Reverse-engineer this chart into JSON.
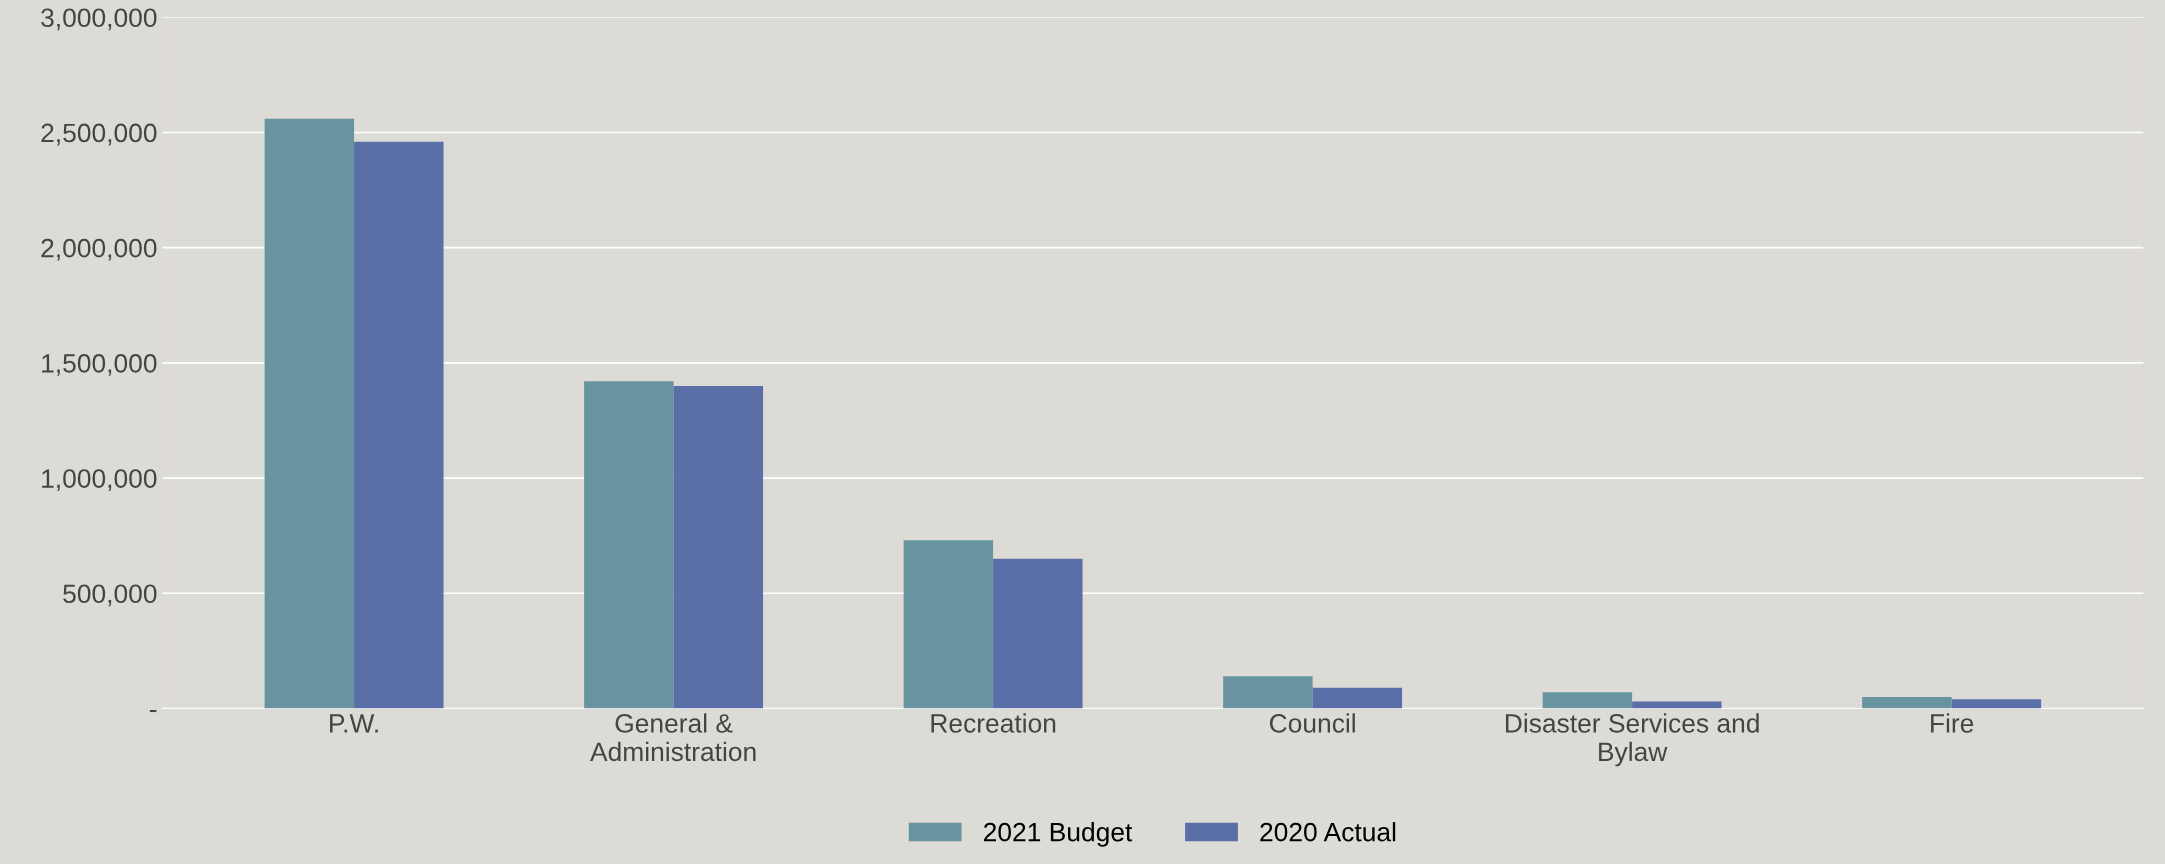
{
  "chart_data": {
    "type": "bar",
    "categories": [
      "P.W.",
      "General &\nAdministration",
      "Recreation",
      "Council",
      "Disaster Services and\nBylaw",
      "Fire"
    ],
    "series": [
      {
        "name": "2021 Budget",
        "color": "#6894a0",
        "values": [
          2560000,
          1420000,
          730000,
          140000,
          70000,
          50000
        ]
      },
      {
        "name": "2020 Actual",
        "color": "#5a6fa8",
        "values": [
          2460000,
          1400000,
          650000,
          90000,
          30000,
          40000
        ]
      }
    ],
    "ylim": [
      0,
      3000000
    ],
    "yticks": [
      {
        "value": 0,
        "label": "-"
      },
      {
        "value": 500000,
        "label": "500,000"
      },
      {
        "value": 1000000,
        "label": "1,000,000"
      },
      {
        "value": 1500000,
        "label": "1,500,000"
      },
      {
        "value": 2000000,
        "label": "2,000,000"
      },
      {
        "value": 2500000,
        "label": "2,500,000"
      },
      {
        "value": 3000000,
        "label": "3,000,000"
      }
    ],
    "grid": "y",
    "legend": "bottom"
  }
}
